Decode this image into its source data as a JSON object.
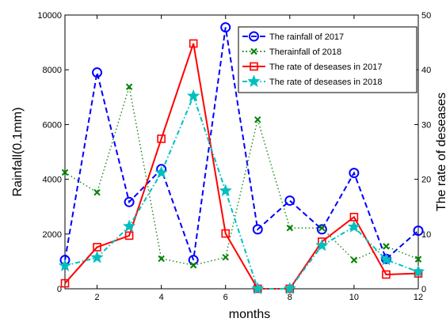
{
  "chart_data": {
    "type": "line",
    "x": [
      1,
      2,
      3,
      4,
      5,
      6,
      7,
      8,
      9,
      10,
      11,
      12
    ],
    "xlabel": "months",
    "ylabel": "Rainfall(0.1mm)",
    "y2label": "The rate of deseases",
    "xlim": [
      1,
      12
    ],
    "xticks": [
      2,
      4,
      6,
      8,
      10,
      12
    ],
    "ylim": [
      0,
      10000
    ],
    "yticks": [
      0,
      2000,
      4000,
      6000,
      8000,
      10000
    ],
    "y2lim": [
      0,
      50
    ],
    "y2ticks": [
      0,
      10,
      20,
      30,
      40,
      50
    ],
    "grid": false,
    "legend_position": "top-right",
    "series": [
      {
        "name": "The rainfall of 2017",
        "axis": "left",
        "color": "#0000ff",
        "style": "dashed",
        "marker": "circle",
        "values": [
          1050,
          7900,
          3170,
          4370,
          1050,
          9550,
          2170,
          3220,
          2170,
          4230,
          1090,
          2120
        ]
      },
      {
        "name": "Therainfall of 2018",
        "axis": "left",
        "color": "#008000",
        "style": "dotted",
        "marker": "x",
        "values": [
          4250,
          3520,
          7380,
          1100,
          860,
          1150,
          6180,
          2220,
          2220,
          1050,
          1550,
          1080
        ]
      },
      {
        "name": "The rate of deseases in 2017",
        "axis": "right",
        "color": "#ff0000",
        "style": "solid",
        "marker": "square",
        "values": [
          1,
          7.6,
          9.7,
          27.4,
          44.8,
          10.1,
          0,
          0,
          8.6,
          13.1,
          2.6,
          2.8
        ]
      },
      {
        "name": "The rate of deseases in 2018",
        "axis": "right",
        "color": "#00bfbf",
        "style": "dashdot",
        "marker": "star",
        "values": [
          4.2,
          5.7,
          11.4,
          21.2,
          35.2,
          17.9,
          0,
          0,
          7.9,
          11.3,
          5.3,
          3.1
        ]
      }
    ]
  }
}
